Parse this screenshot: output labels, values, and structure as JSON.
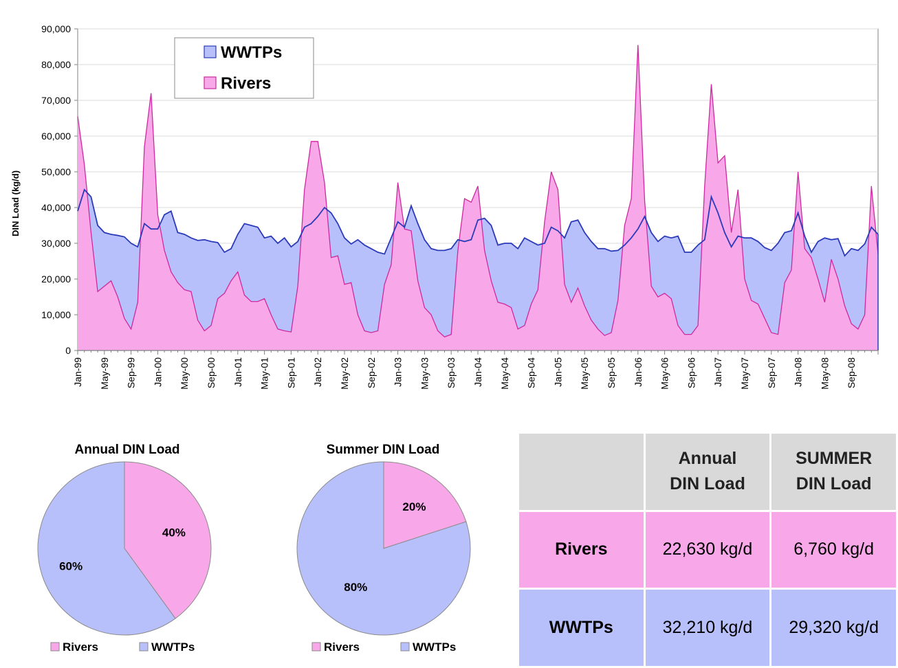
{
  "colors": {
    "rivers": "#f8a8e8",
    "rivers_line": "#cc2a9e",
    "wwtps": "#b8c0fc",
    "wwtps_line": "#2a3ab8",
    "grid": "#d9d9d9",
    "axis": "#808080"
  },
  "chart_data": [
    {
      "type": "area",
      "ylabel": "DIN Load (kg/d)",
      "ylim": [
        0,
        90000
      ],
      "yticks": [
        "0",
        "10,000",
        "20,000",
        "30,000",
        "40,000",
        "50,000",
        "60,000",
        "70,000",
        "80,000",
        "90,000"
      ],
      "xtick_labels": [
        "Jan-99",
        "May-99",
        "Sep-99",
        "Jan-00",
        "May-00",
        "Sep-00",
        "Jan-01",
        "May-01",
        "Sep-01",
        "Jan-02",
        "May-02",
        "Sep-02",
        "Jan-03",
        "May-03",
        "Sep-03",
        "Jan-04",
        "May-04",
        "Sep-04",
        "Jan-05",
        "May-05",
        "Sep-05",
        "Jan-06",
        "May-06",
        "Sep-06",
        "Jan-07",
        "May-07",
        "Sep-07",
        "Jan-08",
        "May-08",
        "Sep-08"
      ],
      "x_start": "Jan-99",
      "grid": true,
      "legend_position": "top-left",
      "series": [
        {
          "name": "WWTPs",
          "values": [
            39000,
            45000,
            43000,
            35000,
            33000,
            32500,
            32200,
            31800,
            30000,
            29000,
            35500,
            34000,
            34000,
            38000,
            39000,
            33000,
            32500,
            31500,
            30800,
            31000,
            30500,
            30200,
            27500,
            28500,
            32500,
            35500,
            35000,
            34500,
            31500,
            32000,
            30000,
            31500,
            29000,
            30500,
            34500,
            35500,
            37500,
            40000,
            38500,
            35500,
            31500,
            29800,
            31000,
            29500,
            28500,
            27500,
            27000,
            31500,
            36000,
            34500,
            40500,
            35500,
            31000,
            28500,
            28000,
            28000,
            28500,
            31000,
            30500,
            31000,
            36500,
            37000,
            35000,
            29500,
            30000,
            30000,
            28500,
            31500,
            30500,
            29500,
            30000,
            34500,
            33500,
            31500,
            36000,
            36500,
            33000,
            30500,
            28500,
            28500,
            27800,
            28000,
            29500,
            31500,
            34000,
            37500,
            33000,
            30500,
            32000,
            31500,
            32000,
            27500,
            27500,
            29500,
            31000,
            43000,
            38500,
            33000,
            29000,
            32000,
            31500,
            31500,
            30500,
            28800,
            28000,
            30000,
            33000,
            33500,
            38500,
            32000,
            27500,
            30500,
            31500,
            31000,
            31300,
            26500,
            28500,
            28000,
            29800,
            34500,
            32500
          ]
        },
        {
          "name": "Rivers",
          "values": [
            65500,
            52000,
            33000,
            16500,
            18000,
            19500,
            15000,
            9000,
            6000,
            13500,
            57000,
            72000,
            38000,
            28000,
            22000,
            19000,
            17000,
            16500,
            8500,
            5500,
            7000,
            14500,
            16000,
            19500,
            22000,
            15500,
            13700,
            13700,
            14500,
            10000,
            6000,
            5500,
            5200,
            18000,
            45000,
            58500,
            58500,
            47000,
            26000,
            26500,
            18500,
            19000,
            10000,
            5500,
            5000,
            5500,
            18500,
            24000,
            47000,
            34000,
            33500,
            19500,
            12000,
            10000,
            5500,
            3800,
            4500,
            28000,
            42500,
            41500,
            46000,
            28000,
            19500,
            13500,
            13000,
            12000,
            6000,
            7000,
            13000,
            17000,
            36000,
            50000,
            45000,
            18500,
            13500,
            17500,
            12500,
            8500,
            6000,
            4200,
            5000,
            14000,
            35000,
            42500,
            85500,
            42000,
            18000,
            15000,
            16000,
            14500,
            7000,
            4500,
            4500,
            7000,
            46000,
            74500,
            52500,
            54500,
            33000,
            45000,
            20000,
            14000,
            13000,
            9000,
            5000,
            4500,
            19000,
            22500,
            50000,
            28500,
            26000,
            20000,
            13500,
            25500,
            20000,
            12500,
            7500,
            6000,
            10000,
            46000,
            27000
          ]
        }
      ]
    },
    {
      "type": "pie",
      "title": "Annual DIN Load",
      "slices": [
        {
          "label": "Rivers",
          "value": 40,
          "text": "40%"
        },
        {
          "label": "WWTPs",
          "value": 60,
          "text": "60%"
        }
      ],
      "legend_position": "bottom"
    },
    {
      "type": "pie",
      "title": "Summer DIN Load",
      "slices": [
        {
          "label": "Rivers",
          "value": 20,
          "text": "20%"
        },
        {
          "label": "WWTPs",
          "value": 80,
          "text": "80%"
        }
      ],
      "legend_position": "bottom"
    },
    {
      "type": "table",
      "headers": [
        "",
        "Annual DIN Load",
        "SUMMER DIN Load"
      ],
      "header_lines": [
        [
          "Annual",
          "DIN Load"
        ],
        [
          "SUMMER",
          "DIN Load"
        ]
      ],
      "rows": [
        {
          "label": "Rivers",
          "annual": "22,630 kg/d",
          "summer": "6,760 kg/d"
        },
        {
          "label": "WWTPs",
          "annual": "32,210 kg/d",
          "summer": "29,320 kg/d"
        }
      ]
    }
  ]
}
